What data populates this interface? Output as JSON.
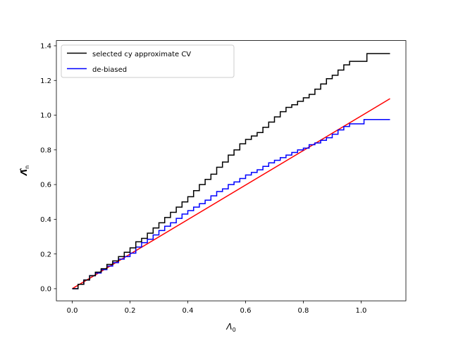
{
  "chart_data": {
    "type": "line",
    "title": "",
    "xlabel": "Λ",
    "xlabel_sub": "0",
    "ylabel": "Λ̂",
    "ylabel_sub": "n",
    "xlim": [
      -0.055,
      1.155
    ],
    "ylim": [
      -0.07,
      1.43
    ],
    "xticks": [
      0.0,
      0.2,
      0.4,
      0.6,
      0.8,
      1.0
    ],
    "xtick_labels": [
      "0.0",
      "0.2",
      "0.4",
      "0.6",
      "0.8",
      "1.0"
    ],
    "yticks": [
      0.0,
      0.2,
      0.4,
      0.6,
      0.8,
      1.0,
      1.2,
      1.4
    ],
    "ytick_labels": [
      "0.0",
      "0.2",
      "0.4",
      "0.6",
      "0.8",
      "1.0",
      "1.2",
      "1.4"
    ],
    "grid": false,
    "legend_position": "top-left",
    "series": [
      {
        "name": "selected cy approximate CV",
        "color": "#000000",
        "step": true,
        "x": [
          0.0,
          0.02,
          0.04,
          0.06,
          0.08,
          0.1,
          0.12,
          0.14,
          0.16,
          0.18,
          0.2,
          0.22,
          0.24,
          0.26,
          0.28,
          0.3,
          0.32,
          0.34,
          0.36,
          0.38,
          0.4,
          0.42,
          0.44,
          0.46,
          0.48,
          0.5,
          0.52,
          0.54,
          0.56,
          0.58,
          0.6,
          0.62,
          0.64,
          0.66,
          0.68,
          0.7,
          0.72,
          0.74,
          0.76,
          0.78,
          0.8,
          0.82,
          0.84,
          0.86,
          0.88,
          0.9,
          0.92,
          0.94,
          0.96,
          0.98,
          1.0,
          1.02,
          1.1
        ],
        "y": [
          0.0,
          0.025,
          0.05,
          0.075,
          0.095,
          0.115,
          0.14,
          0.16,
          0.185,
          0.21,
          0.235,
          0.27,
          0.29,
          0.32,
          0.35,
          0.38,
          0.41,
          0.44,
          0.47,
          0.5,
          0.53,
          0.565,
          0.6,
          0.63,
          0.66,
          0.7,
          0.73,
          0.77,
          0.8,
          0.835,
          0.86,
          0.88,
          0.9,
          0.93,
          0.96,
          0.99,
          1.02,
          1.045,
          1.06,
          1.08,
          1.1,
          1.12,
          1.15,
          1.18,
          1.21,
          1.23,
          1.26,
          1.29,
          1.31,
          1.31,
          1.31,
          1.355,
          1.355
        ]
      },
      {
        "name": "de-biased",
        "color": "#0000ff",
        "step": true,
        "x": [
          0.0,
          0.02,
          0.04,
          0.06,
          0.08,
          0.1,
          0.12,
          0.14,
          0.16,
          0.18,
          0.2,
          0.22,
          0.24,
          0.26,
          0.28,
          0.3,
          0.32,
          0.34,
          0.36,
          0.38,
          0.4,
          0.42,
          0.44,
          0.46,
          0.48,
          0.5,
          0.52,
          0.54,
          0.56,
          0.58,
          0.6,
          0.62,
          0.64,
          0.66,
          0.68,
          0.7,
          0.72,
          0.74,
          0.76,
          0.78,
          0.8,
          0.82,
          0.84,
          0.86,
          0.88,
          0.9,
          0.92,
          0.94,
          0.96,
          0.98,
          1.0,
          1.01,
          1.1
        ],
        "y": [
          0.0,
          0.025,
          0.05,
          0.075,
          0.09,
          0.11,
          0.13,
          0.15,
          0.17,
          0.185,
          0.205,
          0.24,
          0.265,
          0.285,
          0.31,
          0.335,
          0.36,
          0.38,
          0.405,
          0.43,
          0.45,
          0.47,
          0.49,
          0.51,
          0.535,
          0.56,
          0.575,
          0.6,
          0.615,
          0.635,
          0.655,
          0.67,
          0.685,
          0.705,
          0.725,
          0.74,
          0.755,
          0.77,
          0.785,
          0.8,
          0.81,
          0.83,
          0.84,
          0.855,
          0.87,
          0.89,
          0.915,
          0.935,
          0.95,
          0.95,
          0.95,
          0.975,
          0.975
        ]
      },
      {
        "name": "",
        "color": "#ff0000",
        "step": false,
        "x": [
          0.0,
          1.1
        ],
        "y": [
          0.0,
          1.095
        ]
      }
    ]
  }
}
